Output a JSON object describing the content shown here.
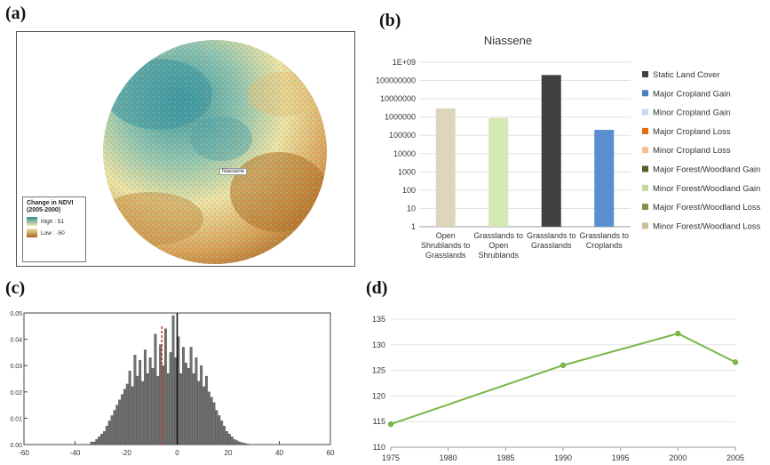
{
  "panels": {
    "a": "(a)",
    "b": "(b)",
    "c": "(c)",
    "d": "(d)"
  },
  "map": {
    "site_label": "Niassene",
    "legend_title_line1": "Change in NDVI",
    "legend_title_line2": "(2005-2000)",
    "legend_high": "High : 51",
    "legend_low": "Low : -50",
    "colors": {
      "high": "#2c8d9a",
      "mid": "#f1e6a8",
      "low": "#a8641c"
    }
  },
  "chart_data": [
    {
      "id": "b",
      "type": "bar",
      "title": "Niassene",
      "yscale": "log",
      "ylim": [
        1,
        1000000000
      ],
      "yticks": [
        "1",
        "10",
        "100",
        "1000",
        "10000",
        "100000",
        "1000000",
        "10000000",
        "100000000",
        "1E+09"
      ],
      "categories": [
        [
          "Open",
          "Shrublands to",
          "Grasslands"
        ],
        [
          "Grasslands to",
          "Open",
          "Shrublands"
        ],
        [
          "Grasslands to",
          "Grasslands"
        ],
        [
          "Grasslands to",
          "Croplands"
        ]
      ],
      "values": [
        3000000,
        900000,
        200000000,
        200000
      ],
      "bar_colors": [
        "#ddd6bd",
        "#d5e8b5",
        "#404040",
        "#5b8ed0"
      ],
      "legend": [
        {
          "label": "Static Land Cover",
          "color": "#404040"
        },
        {
          "label": "Major Cropland Gain",
          "color": "#4a7fc1"
        },
        {
          "label": "Minor Cropland Gain",
          "color": "#c5d9f1"
        },
        {
          "label": "Major Cropland Loss",
          "color": "#e36c09"
        },
        {
          "label": "Minor Cropland Loss",
          "color": "#fabf8f"
        },
        {
          "label": "Major Forest/Woodland Gain",
          "color": "#4f6228"
        },
        {
          "label": "Minor Forest/Woodland Gain",
          "color": "#c4d79b"
        },
        {
          "label": "Major Forest/Woodland Loss",
          "color": "#8a8a4a"
        },
        {
          "label": "Minor Forest/Woodland Loss",
          "color": "#c9bf9a"
        }
      ]
    },
    {
      "id": "c",
      "type": "bar",
      "xlim": [
        -60,
        60
      ],
      "ylim": [
        0,
        0.05
      ],
      "xticks": [
        -60,
        -40,
        -20,
        0,
        20,
        40,
        60
      ],
      "yticks": [
        0.0,
        0.01,
        0.02,
        0.03,
        0.04,
        0.05
      ],
      "ytick_labels": [
        "0.00",
        "0.01",
        "0.02",
        "0.03",
        "0.04",
        "0.05"
      ],
      "bin_start": -34,
      "bin_width": 1,
      "values": [
        0.001,
        0.001,
        0.002,
        0.003,
        0.004,
        0.005,
        0.007,
        0.009,
        0.011,
        0.013,
        0.015,
        0.017,
        0.019,
        0.021,
        0.023,
        0.028,
        0.022,
        0.034,
        0.026,
        0.032,
        0.024,
        0.036,
        0.027,
        0.033,
        0.029,
        0.042,
        0.026,
        0.038,
        0.03,
        0.044,
        0.027,
        0.035,
        0.049,
        0.033,
        0.041,
        0.027,
        0.037,
        0.031,
        0.029,
        0.037,
        0.027,
        0.033,
        0.024,
        0.03,
        0.022,
        0.026,
        0.02,
        0.018,
        0.016,
        0.013,
        0.011,
        0.009,
        0.007,
        0.005,
        0.004,
        0.003,
        0.002,
        0.0015,
        0.001,
        0.0007,
        0.0005,
        0.0003
      ],
      "mean_line": -6,
      "zero_line": 0,
      "bar_color": "#707070"
    },
    {
      "id": "d",
      "type": "line",
      "x": [
        1975,
        1990,
        2000,
        2005
      ],
      "y": [
        114.5,
        126,
        132.2,
        126.6
      ],
      "xlim": [
        1975,
        2005
      ],
      "ylim": [
        110,
        135
      ],
      "xticks": [
        1975,
        1980,
        1985,
        1990,
        1995,
        2000,
        2005
      ],
      "yticks": [
        110,
        115,
        120,
        125,
        130,
        135
      ],
      "color": "#7ab648"
    }
  ]
}
